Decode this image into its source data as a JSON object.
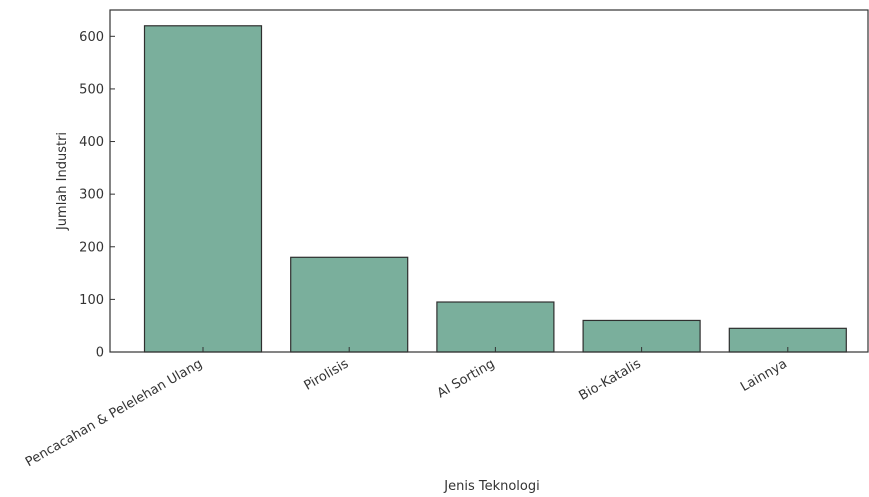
{
  "chart_data": {
    "type": "bar",
    "title": "",
    "xlabel": "Jenis Teknologi",
    "ylabel": "Jumlah Industri",
    "categories": [
      "Pencacahan & Pelelehan Ulang",
      "Pirolisis",
      "AI Sorting",
      "Bio-Katalis",
      "Lainnya"
    ],
    "values": [
      620,
      180,
      95,
      60,
      45
    ],
    "ylim": [
      0,
      650
    ],
    "yticks": [
      0,
      100,
      200,
      300,
      400,
      500,
      600
    ],
    "grid": false,
    "bar_color": "#7aaf9c",
    "bar_edge_color": "#2f2f2f"
  }
}
